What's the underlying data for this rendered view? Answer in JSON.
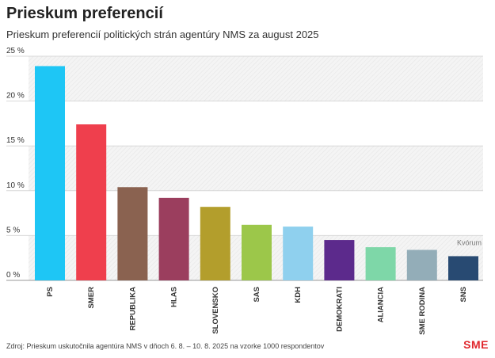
{
  "header": {
    "title": "Prieskum preferencií",
    "subtitle": "Prieskum preferencií politických strán agentúry NMS za august 2025"
  },
  "footer": {
    "source": "Zdroj: Prieskum uskutočnila agentúra NMS v dňoch 6. 8. – 10. 8. 2025 na vzorke 1000 respondentov",
    "logo": "SME"
  },
  "chart_data": {
    "type": "bar",
    "categories": [
      "PS",
      "SMER",
      "REPUBLIKA",
      "HLAS",
      "SLOVENSKO",
      "SAS",
      "KDH",
      "DEMOKRATI",
      "ALIANCIA",
      "SME RODINA",
      "SNS"
    ],
    "values": [
      23.9,
      17.4,
      10.4,
      9.2,
      8.2,
      6.2,
      6.0,
      4.5,
      3.7,
      3.4,
      2.7
    ],
    "colors": [
      "#1ec6f5",
      "#ef3f4d",
      "#8a6250",
      "#9b3e5e",
      "#b39e2c",
      "#9cc74a",
      "#8fd0ee",
      "#5c2a8c",
      "#7ed7a8",
      "#93adb8",
      "#284a72"
    ],
    "yticks": [
      0,
      5,
      10,
      15,
      20,
      25
    ],
    "ytick_labels": [
      "0 %",
      "5 %",
      "10 %",
      "15 %",
      "20 %",
      "25 %"
    ],
    "ylim": [
      0,
      25
    ],
    "threshold": {
      "value": 5,
      "label": "Kvórum"
    },
    "grid": true,
    "legend": "none"
  }
}
